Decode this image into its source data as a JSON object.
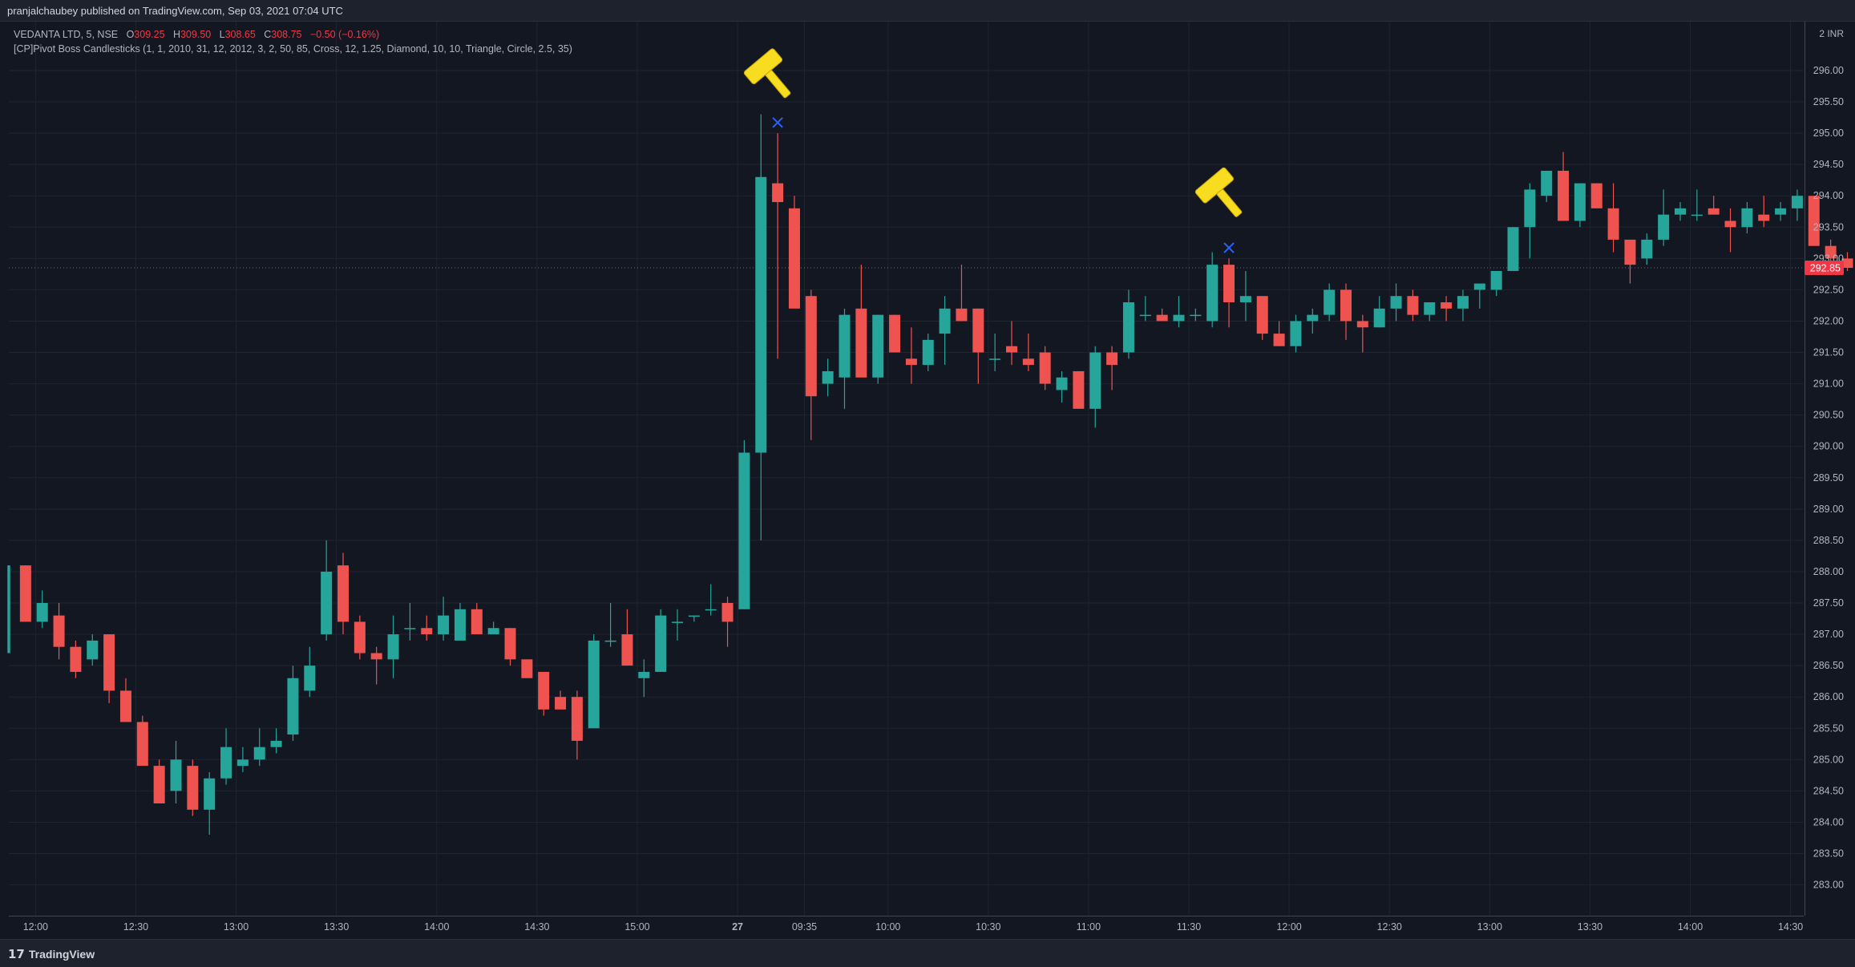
{
  "header": {
    "published": "pranjalchaubey published on TradingView.com, Sep 03, 2021 07:04 UTC"
  },
  "legend": {
    "symbol": "VEDANTA LTD, 5, NSE",
    "open_label": "O",
    "open": "309.25",
    "high_label": "H",
    "high": "309.50",
    "low_label": "L",
    "low": "308.65",
    "close_label": "C",
    "close": "308.75",
    "change": "−0.50 (−0.16%)",
    "indicator": "[CP]Pivot Boss Candlesticks (1, 1, 2010, 31, 12, 2012, 3, 2, 50, 85, Cross, 12, 1.25, Diamond, 10, 10, Triangle, Circle, 2.5, 35)"
  },
  "footer": {
    "logo_text": "TradingView",
    "logo_mark": "17"
  },
  "colors": {
    "background": "#131722",
    "up": "#26a69a",
    "down": "#ef5350",
    "grid": "#1f2430",
    "axis_text": "#b2b5be",
    "last_price_bg": "#f23645",
    "marker_cross": "#2962ff",
    "marker_hammer": "#f7dc1f"
  },
  "chart_data": {
    "type": "candlestick",
    "symbol": "VEDANTA LTD",
    "interval": "5",
    "exchange": "NSE",
    "currency_label": "2 INR",
    "ylim": [
      282.7,
      296.55
    ],
    "last_price": "292.85",
    "y_ticks": [
      "296.00",
      "295.50",
      "295.00",
      "294.50",
      "294.00",
      "293.50",
      "293.00",
      "292.50",
      "292.00",
      "291.50",
      "291.00",
      "290.50",
      "290.00",
      "289.50",
      "289.00",
      "288.50",
      "288.00",
      "287.50",
      "287.00",
      "286.50",
      "286.00",
      "285.50",
      "285.00",
      "284.50",
      "284.00",
      "283.50",
      "283.00"
    ],
    "x_ticks": [
      {
        "label": "12:00",
        "index": 1.6
      },
      {
        "label": "12:30",
        "index": 7.6
      },
      {
        "label": "13:00",
        "index": 13.6
      },
      {
        "label": "13:30",
        "index": 19.6
      },
      {
        "label": "14:00",
        "index": 25.6
      },
      {
        "label": "14:30",
        "index": 31.6
      },
      {
        "label": "15:00",
        "index": 37.6
      },
      {
        "label": "27",
        "index": 43.6,
        "bold": true
      },
      {
        "label": "09:35",
        "index": 47.6
      },
      {
        "label": "10:00",
        "index": 52.6
      },
      {
        "label": "10:30",
        "index": 58.6
      },
      {
        "label": "11:00",
        "index": 64.6
      },
      {
        "label": "11:30",
        "index": 70.6
      },
      {
        "label": "12:00",
        "index": 76.6
      },
      {
        "label": "12:30",
        "index": 82.6
      },
      {
        "label": "13:00",
        "index": 88.6
      },
      {
        "label": "13:30",
        "index": 94.6
      },
      {
        "label": "14:00",
        "index": 100.6
      },
      {
        "label": "14:30",
        "index": 106.6
      }
    ],
    "candles": [
      {
        "o": 286.7,
        "h": 288.1,
        "l": 286.7,
        "c": 288.1
      },
      {
        "o": 288.1,
        "h": 288.1,
        "l": 287.2,
        "c": 287.2
      },
      {
        "o": 287.2,
        "h": 287.7,
        "l": 287.1,
        "c": 287.5
      },
      {
        "o": 287.3,
        "h": 287.5,
        "l": 286.6,
        "c": 286.8
      },
      {
        "o": 286.8,
        "h": 286.9,
        "l": 286.3,
        "c": 286.4
      },
      {
        "o": 286.6,
        "h": 287.0,
        "l": 286.5,
        "c": 286.9
      },
      {
        "o": 287.0,
        "h": 287.0,
        "l": 285.9,
        "c": 286.1
      },
      {
        "o": 286.1,
        "h": 286.3,
        "l": 285.6,
        "c": 285.6
      },
      {
        "o": 285.6,
        "h": 285.7,
        "l": 284.9,
        "c": 284.9
      },
      {
        "o": 284.9,
        "h": 285.0,
        "l": 284.3,
        "c": 284.3
      },
      {
        "o": 284.5,
        "h": 285.3,
        "l": 284.3,
        "c": 285.0
      },
      {
        "o": 284.9,
        "h": 285.0,
        "l": 284.1,
        "c": 284.2
      },
      {
        "o": 284.2,
        "h": 284.8,
        "l": 283.8,
        "c": 284.7
      },
      {
        "o": 284.7,
        "h": 285.5,
        "l": 284.6,
        "c": 285.2
      },
      {
        "o": 284.9,
        "h": 285.2,
        "l": 284.8,
        "c": 285.0
      },
      {
        "o": 285.0,
        "h": 285.5,
        "l": 284.9,
        "c": 285.2
      },
      {
        "o": 285.2,
        "h": 285.5,
        "l": 285.1,
        "c": 285.3
      },
      {
        "o": 285.4,
        "h": 286.5,
        "l": 285.3,
        "c": 286.3
      },
      {
        "o": 286.1,
        "h": 286.8,
        "l": 286.0,
        "c": 286.5
      },
      {
        "o": 287.0,
        "h": 288.5,
        "l": 286.9,
        "c": 288.0
      },
      {
        "o": 288.1,
        "h": 288.3,
        "l": 287.0,
        "c": 287.2
      },
      {
        "o": 287.2,
        "h": 287.3,
        "l": 286.6,
        "c": 286.7
      },
      {
        "o": 286.7,
        "h": 286.8,
        "l": 286.2,
        "c": 286.6
      },
      {
        "o": 286.6,
        "h": 287.3,
        "l": 286.3,
        "c": 287.0
      },
      {
        "o": 287.1,
        "h": 287.5,
        "l": 286.9,
        "c": 287.1
      },
      {
        "o": 287.1,
        "h": 287.3,
        "l": 286.9,
        "c": 287.0
      },
      {
        "o": 287.0,
        "h": 287.6,
        "l": 286.9,
        "c": 287.3
      },
      {
        "o": 286.9,
        "h": 287.5,
        "l": 286.9,
        "c": 287.4
      },
      {
        "o": 287.4,
        "h": 287.5,
        "l": 287.0,
        "c": 287.0
      },
      {
        "o": 287.0,
        "h": 287.2,
        "l": 287.0,
        "c": 287.1
      },
      {
        "o": 287.1,
        "h": 287.1,
        "l": 286.5,
        "c": 286.6
      },
      {
        "o": 286.6,
        "h": 286.6,
        "l": 286.4,
        "c": 286.3
      },
      {
        "o": 286.4,
        "h": 286.4,
        "l": 285.7,
        "c": 285.8
      },
      {
        "o": 286.0,
        "h": 286.1,
        "l": 285.8,
        "c": 285.8
      },
      {
        "o": 286.0,
        "h": 286.1,
        "l": 285.0,
        "c": 285.3
      },
      {
        "o": 285.5,
        "h": 287.0,
        "l": 285.5,
        "c": 286.9
      },
      {
        "o": 286.9,
        "h": 287.5,
        "l": 286.8,
        "c": 286.9
      },
      {
        "o": 287.0,
        "h": 287.4,
        "l": 286.5,
        "c": 286.5
      },
      {
        "o": 286.3,
        "h": 286.6,
        "l": 286.0,
        "c": 286.4
      },
      {
        "o": 286.4,
        "h": 287.4,
        "l": 286.4,
        "c": 287.3
      },
      {
        "o": 287.2,
        "h": 287.4,
        "l": 286.9,
        "c": 287.2
      },
      {
        "o": 287.3,
        "h": 287.3,
        "l": 287.2,
        "c": 287.3
      },
      {
        "o": 287.4,
        "h": 287.8,
        "l": 287.3,
        "c": 287.4
      },
      {
        "o": 287.5,
        "h": 287.6,
        "l": 286.8,
        "c": 287.2
      },
      {
        "o": 287.4,
        "h": 290.1,
        "l": 287.4,
        "c": 289.9
      },
      {
        "o": 289.9,
        "h": 295.3,
        "l": 288.5,
        "c": 294.3
      },
      {
        "o": 294.2,
        "h": 295.0,
        "l": 291.4,
        "c": 293.9
      },
      {
        "o": 293.8,
        "h": 294.0,
        "l": 292.3,
        "c": 292.2
      },
      {
        "o": 292.4,
        "h": 292.5,
        "l": 290.1,
        "c": 290.8
      },
      {
        "o": 291.0,
        "h": 291.4,
        "l": 290.8,
        "c": 291.2
      },
      {
        "o": 291.1,
        "h": 292.2,
        "l": 290.6,
        "c": 292.1
      },
      {
        "o": 292.2,
        "h": 292.9,
        "l": 291.1,
        "c": 291.1
      },
      {
        "o": 291.1,
        "h": 292.1,
        "l": 291.0,
        "c": 292.1
      },
      {
        "o": 292.1,
        "h": 292.1,
        "l": 291.5,
        "c": 291.5
      },
      {
        "o": 291.4,
        "h": 291.9,
        "l": 291.0,
        "c": 291.3
      },
      {
        "o": 291.3,
        "h": 291.8,
        "l": 291.2,
        "c": 291.7
      },
      {
        "o": 291.8,
        "h": 292.4,
        "l": 291.3,
        "c": 292.2
      },
      {
        "o": 292.2,
        "h": 292.9,
        "l": 292.0,
        "c": 292.0
      },
      {
        "o": 292.2,
        "h": 292.2,
        "l": 291.0,
        "c": 291.5
      },
      {
        "o": 291.4,
        "h": 291.8,
        "l": 291.2,
        "c": 291.4
      },
      {
        "o": 291.6,
        "h": 292.0,
        "l": 291.3,
        "c": 291.5
      },
      {
        "o": 291.4,
        "h": 291.8,
        "l": 291.2,
        "c": 291.3
      },
      {
        "o": 291.5,
        "h": 291.6,
        "l": 290.9,
        "c": 291.0
      },
      {
        "o": 290.9,
        "h": 291.2,
        "l": 290.7,
        "c": 291.1
      },
      {
        "o": 291.2,
        "h": 291.2,
        "l": 290.6,
        "c": 290.6
      },
      {
        "o": 290.6,
        "h": 291.6,
        "l": 290.3,
        "c": 291.5
      },
      {
        "o": 291.5,
        "h": 291.6,
        "l": 290.9,
        "c": 291.3
      },
      {
        "o": 291.5,
        "h": 292.5,
        "l": 291.4,
        "c": 292.3
      },
      {
        "o": 292.1,
        "h": 292.4,
        "l": 292.0,
        "c": 292.1
      },
      {
        "o": 292.1,
        "h": 292.2,
        "l": 292.0,
        "c": 292.0
      },
      {
        "o": 292.0,
        "h": 292.4,
        "l": 291.9,
        "c": 292.1
      },
      {
        "o": 292.1,
        "h": 292.2,
        "l": 292.0,
        "c": 292.1
      },
      {
        "o": 292.0,
        "h": 293.1,
        "l": 291.9,
        "c": 292.9
      },
      {
        "o": 292.9,
        "h": 293.0,
        "l": 291.9,
        "c": 292.3
      },
      {
        "o": 292.3,
        "h": 292.8,
        "l": 292.0,
        "c": 292.4
      },
      {
        "o": 292.4,
        "h": 292.4,
        "l": 291.7,
        "c": 291.8
      },
      {
        "o": 291.8,
        "h": 292.0,
        "l": 291.6,
        "c": 291.6
      },
      {
        "o": 291.6,
        "h": 292.1,
        "l": 291.5,
        "c": 292.0
      },
      {
        "o": 292.0,
        "h": 292.2,
        "l": 291.8,
        "c": 292.1
      },
      {
        "o": 292.1,
        "h": 292.6,
        "l": 292.0,
        "c": 292.5
      },
      {
        "o": 292.5,
        "h": 292.6,
        "l": 291.7,
        "c": 292.0
      },
      {
        "o": 292.0,
        "h": 292.1,
        "l": 291.5,
        "c": 291.9
      },
      {
        "o": 291.9,
        "h": 292.4,
        "l": 291.9,
        "c": 292.2
      },
      {
        "o": 292.2,
        "h": 292.6,
        "l": 292.0,
        "c": 292.4
      },
      {
        "o": 292.4,
        "h": 292.5,
        "l": 292.0,
        "c": 292.1
      },
      {
        "o": 292.1,
        "h": 292.3,
        "l": 292.0,
        "c": 292.3
      },
      {
        "o": 292.3,
        "h": 292.4,
        "l": 292.0,
        "c": 292.2
      },
      {
        "o": 292.2,
        "h": 292.5,
        "l": 292.0,
        "c": 292.4
      },
      {
        "o": 292.5,
        "h": 292.6,
        "l": 292.2,
        "c": 292.6
      },
      {
        "o": 292.5,
        "h": 292.8,
        "l": 292.4,
        "c": 292.8
      },
      {
        "o": 292.8,
        "h": 293.5,
        "l": 292.8,
        "c": 293.5
      },
      {
        "o": 293.5,
        "h": 294.2,
        "l": 293.0,
        "c": 294.1
      },
      {
        "o": 294.0,
        "h": 294.4,
        "l": 293.9,
        "c": 294.4
      },
      {
        "o": 294.4,
        "h": 294.7,
        "l": 293.6,
        "c": 293.6
      },
      {
        "o": 293.6,
        "h": 294.2,
        "l": 293.5,
        "c": 294.2
      },
      {
        "o": 294.2,
        "h": 294.2,
        "l": 293.8,
        "c": 293.8
      },
      {
        "o": 293.8,
        "h": 294.2,
        "l": 293.1,
        "c": 293.3
      },
      {
        "o": 293.3,
        "h": 293.3,
        "l": 292.6,
        "c": 292.9
      },
      {
        "o": 293.0,
        "h": 293.4,
        "l": 292.9,
        "c": 293.3
      },
      {
        "o": 293.3,
        "h": 294.1,
        "l": 293.2,
        "c": 293.7
      },
      {
        "o": 293.7,
        "h": 293.9,
        "l": 293.6,
        "c": 293.8
      },
      {
        "o": 293.7,
        "h": 294.1,
        "l": 293.6,
        "c": 293.7
      },
      {
        "o": 293.8,
        "h": 294.0,
        "l": 293.7,
        "c": 293.7
      },
      {
        "o": 293.6,
        "h": 293.8,
        "l": 293.1,
        "c": 293.5
      },
      {
        "o": 293.5,
        "h": 293.9,
        "l": 293.4,
        "c": 293.8
      },
      {
        "o": 293.7,
        "h": 294.0,
        "l": 293.5,
        "c": 293.6
      },
      {
        "o": 293.7,
        "h": 293.9,
        "l": 293.6,
        "c": 293.8
      },
      {
        "o": 293.8,
        "h": 294.1,
        "l": 293.6,
        "c": 294.0
      },
      {
        "o": 294.0,
        "h": 294.0,
        "l": 293.2,
        "c": 293.2
      },
      {
        "o": 293.2,
        "h": 293.3,
        "l": 292.9,
        "c": 293.0
      },
      {
        "o": 293.0,
        "h": 293.1,
        "l": 292.8,
        "c": 292.85
      }
    ],
    "markers": [
      {
        "type": "hammer",
        "index": 45.5,
        "price": 295.95
      },
      {
        "type": "cross",
        "index": 46,
        "price": 295.17
      },
      {
        "type": "hammer",
        "index": 72.5,
        "price": 294.05
      },
      {
        "type": "cross",
        "index": 73,
        "price": 293.17
      }
    ]
  }
}
